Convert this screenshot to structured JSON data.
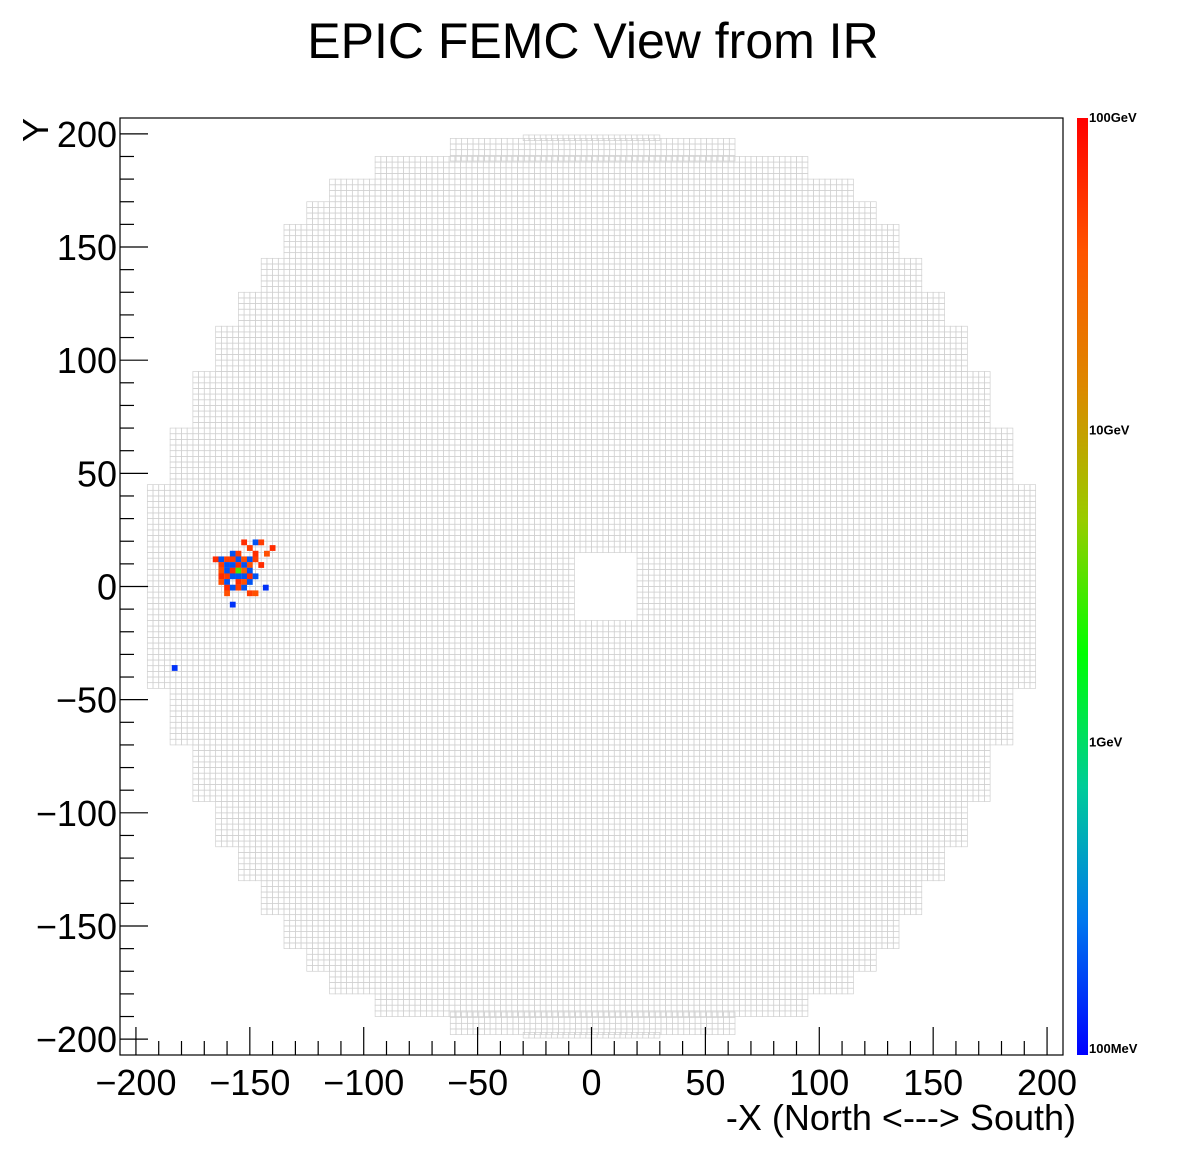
{
  "chart_data": {
    "type": "heatmap",
    "title": "EPIC FEMC View from IR",
    "xlabel": "-X (North <---> South)",
    "ylabel": "Y",
    "xlim": [
      -207,
      207
    ],
    "ylim": [
      -207,
      207
    ],
    "x_ticks": [
      -200,
      -150,
      -100,
      -50,
      0,
      50,
      100,
      150,
      200
    ],
    "y_ticks": [
      -200,
      -150,
      -100,
      -50,
      0,
      50,
      100,
      150,
      200
    ],
    "x_tick_labels": [
      "−200",
      "−150",
      "−100",
      "−50",
      "0",
      "50",
      "100",
      "150",
      "200"
    ],
    "y_tick_labels": [
      "−200",
      "−150",
      "−100",
      "−50",
      "0",
      "50",
      "100",
      "150",
      "200"
    ],
    "detector": {
      "cell_size": 2.5,
      "outline_color": "#d0d0d0",
      "profile": [
        {
          "y_min": 0,
          "y_max": 15,
          "half_width": 195
        },
        {
          "y_min": 15,
          "y_max": 45,
          "half_width": 195
        },
        {
          "y_min": 45,
          "y_max": 70,
          "half_width": 185
        },
        {
          "y_min": 70,
          "y_max": 95,
          "half_width": 175
        },
        {
          "y_min": 95,
          "y_max": 115,
          "half_width": 165
        },
        {
          "y_min": 115,
          "y_max": 130,
          "half_width": 155
        },
        {
          "y_min": 130,
          "y_max": 145,
          "half_width": 145
        },
        {
          "y_min": 145,
          "y_max": 160,
          "half_width": 135
        },
        {
          "y_min": 160,
          "y_max": 170,
          "half_width": 125
        },
        {
          "y_min": 170,
          "y_max": 180,
          "half_width": 115
        },
        {
          "y_min": 180,
          "y_max": 188,
          "half_width": 95
        },
        {
          "y_min": 188,
          "y_max": 197,
          "half_width": 62
        },
        {
          "y_min": 197,
          "y_max": 198,
          "half_width": 30
        }
      ],
      "beam_hole": {
        "x_min": -7,
        "x_max": 20,
        "y_min": -15,
        "y_max": 15
      }
    },
    "color_scale": {
      "type": "log",
      "min_gev": 0.1,
      "max_gev": 100,
      "tick_values_gev": [
        0.1,
        1,
        10,
        100
      ],
      "tick_labels": [
        "100MeV",
        "1GeV",
        "10GeV",
        "100GeV"
      ],
      "stops": [
        "#0000ff",
        "#0077ee",
        "#00cc99",
        "#00ff00",
        "#99cc00",
        "#dd8800",
        "#ff5500",
        "#ff0000"
      ]
    },
    "hits": [
      {
        "x": -165,
        "y": 12,
        "e": 60
      },
      {
        "x": -162.5,
        "y": 12,
        "e": 0.2
      },
      {
        "x": -162.5,
        "y": 9.5,
        "e": 50
      },
      {
        "x": -162.5,
        "y": 7,
        "e": 40
      },
      {
        "x": -162.5,
        "y": 4.5,
        "e": 60
      },
      {
        "x": -162.5,
        "y": 2,
        "e": 40
      },
      {
        "x": -160,
        "y": 12,
        "e": 50
      },
      {
        "x": -160,
        "y": 9.5,
        "e": 0.2
      },
      {
        "x": -160,
        "y": 7,
        "e": 0.2
      },
      {
        "x": -160,
        "y": 4.5,
        "e": 50
      },
      {
        "x": -160,
        "y": 2,
        "e": 0.2
      },
      {
        "x": -160,
        "y": -0.5,
        "e": 60
      },
      {
        "x": -160,
        "y": -3,
        "e": 40
      },
      {
        "x": -157.5,
        "y": 14.5,
        "e": 0.2
      },
      {
        "x": -157.5,
        "y": 12,
        "e": 50
      },
      {
        "x": -157.5,
        "y": 9.5,
        "e": 0.2
      },
      {
        "x": -157.5,
        "y": 7,
        "e": 60
      },
      {
        "x": -157.5,
        "y": 4.5,
        "e": 0.2
      },
      {
        "x": -157.5,
        "y": -0.5,
        "e": 0.2
      },
      {
        "x": -155,
        "y": 14.5,
        "e": 50
      },
      {
        "x": -155,
        "y": 12,
        "e": 0.2
      },
      {
        "x": -155,
        "y": 9.5,
        "e": 60
      },
      {
        "x": -155,
        "y": 7,
        "e": 3
      },
      {
        "x": -155,
        "y": 4.5,
        "e": 0.2
      },
      {
        "x": -155,
        "y": 2,
        "e": 60
      },
      {
        "x": -155,
        "y": -0.5,
        "e": 50
      },
      {
        "x": -152.5,
        "y": 19.5,
        "e": 60
      },
      {
        "x": -152.5,
        "y": 12,
        "e": 40
      },
      {
        "x": -152.5,
        "y": 9.5,
        "e": 0.2
      },
      {
        "x": -152.5,
        "y": 7,
        "e": 30
      },
      {
        "x": -152.5,
        "y": 4.5,
        "e": 0.2
      },
      {
        "x": -152.5,
        "y": 2,
        "e": 40
      },
      {
        "x": -152.5,
        "y": -0.5,
        "e": 0.2
      },
      {
        "x": -150,
        "y": 17,
        "e": 50
      },
      {
        "x": -150,
        "y": 12,
        "e": 0.2
      },
      {
        "x": -150,
        "y": 9.5,
        "e": 40
      },
      {
        "x": -150,
        "y": 7,
        "e": 0.2
      },
      {
        "x": -150,
        "y": 4.5,
        "e": 60
      },
      {
        "x": -150,
        "y": 2,
        "e": 0.2
      },
      {
        "x": -150,
        "y": -3,
        "e": 50
      },
      {
        "x": -147.5,
        "y": 19.5,
        "e": 0.2
      },
      {
        "x": -147.5,
        "y": 14.5,
        "e": 60
      },
      {
        "x": -147.5,
        "y": 12,
        "e": 50
      },
      {
        "x": -147.5,
        "y": 4.5,
        "e": 0.2
      },
      {
        "x": -147.5,
        "y": -3,
        "e": 40
      },
      {
        "x": -145,
        "y": 19.5,
        "e": 50
      },
      {
        "x": -145,
        "y": 9.5,
        "e": 60
      },
      {
        "x": -142.5,
        "y": 14.5,
        "e": 40
      },
      {
        "x": -140,
        "y": 17,
        "e": 60
      },
      {
        "x": -157.5,
        "y": -8,
        "e": 0.15
      },
      {
        "x": -143,
        "y": -0.5,
        "e": 0.15
      },
      {
        "x": -183,
        "y": -36,
        "e": 0.15
      }
    ]
  }
}
